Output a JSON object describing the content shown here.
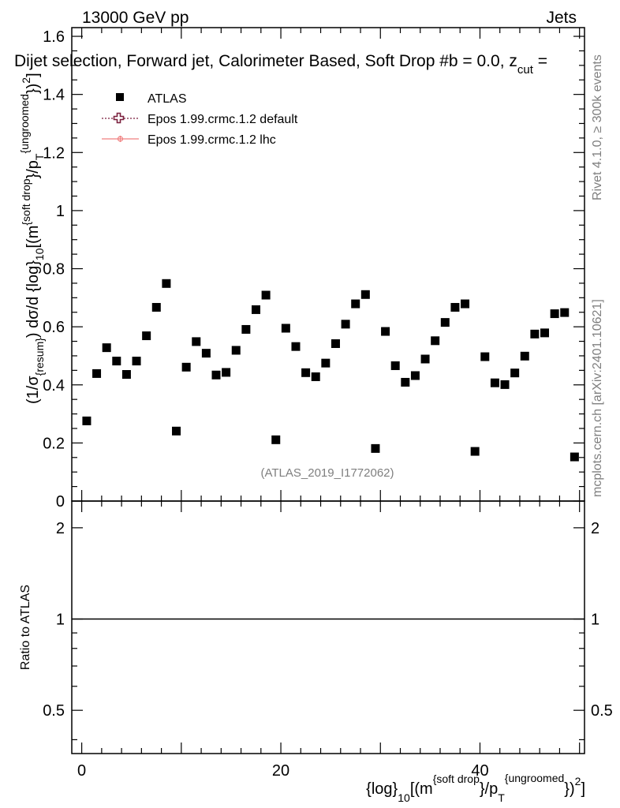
{
  "header": {
    "left": "13000 GeV pp",
    "right": "Jets",
    "plot_title": "Dijet selection, Forward jet, Calorimeter Based, Soft Drop #b = 0.0, z",
    "plot_title_sub": "cut",
    "plot_title_tail": " ="
  },
  "side_labels": {
    "rivet": "Rivet 4.1.0, ≥ 300k events",
    "mcplots": "mcplots.cern.ch [arXiv:2401.10621]"
  },
  "watermark": "(ATLAS_2019_I1772062)",
  "legend": {
    "position": "top-left",
    "entries": [
      {
        "label": "ATLAS",
        "marker": "filled-square",
        "color": "#000000"
      },
      {
        "label": "Epos 1.99.crmc.1.2 default",
        "marker": "open-cross-dotted",
        "color": "#7a1f3d"
      },
      {
        "label": "Epos 1.99.crmc.1.2 lhc",
        "marker": "cross-solid",
        "color": "#f08080"
      }
    ]
  },
  "axes": {
    "ylabel_main": {
      "p1": "(1/σ",
      "p1_sub": "{resum}",
      "p2": ") dσ/d {log}",
      "p2_sub": "10",
      "p3": "[(m",
      "p3_sup": "{soft drop",
      "p4": "}/p",
      "p4_sub": "T",
      "p4_sup": "{ungroomed",
      "p5": "})",
      "p5_sup": "2",
      "p6": "]"
    },
    "ylabel_ratio": "Ratio to ATLAS",
    "xlabel": {
      "p1": "{log}",
      "p1_sub": "10",
      "p2": "[(m",
      "p2_sup": "{soft drop",
      "p3": "}/p",
      "p3_sub": "T",
      "p3_sup": "{ungroomed",
      "p4": "})",
      "p4_sup": "2",
      "p5": "]"
    },
    "main_yticks": [
      "0",
      "0.2",
      "0.4",
      "0.6",
      "0.8",
      "1",
      "1.2",
      "1.4",
      "1.6"
    ],
    "ratio_yticks_left": [
      "0.5",
      "1",
      "2"
    ],
    "ratio_yticks_right": [
      "0.5",
      "1",
      "2"
    ],
    "xticks": [
      "0",
      "20",
      "40"
    ]
  },
  "chart_data": {
    "type": "scatter",
    "xlim": [
      -1,
      50.5
    ],
    "ylim": [
      0,
      1.63
    ],
    "ratio_ylim": [
      0.36,
      2.45
    ],
    "ratio_scale": "log",
    "ratio_reference": 1,
    "grid": false,
    "series": [
      {
        "name": "ATLAS",
        "x": [
          0.5,
          1.5,
          2.5,
          3.5,
          4.5,
          5.5,
          6.5,
          7.5,
          8.5,
          9.5,
          10.5,
          11.5,
          12.5,
          13.5,
          14.5,
          15.5,
          16.5,
          17.5,
          18.5,
          19.5,
          20.5,
          21.5,
          22.5,
          23.5,
          24.5,
          25.5,
          26.5,
          27.5,
          28.5,
          29.5,
          30.5,
          31.5,
          32.5,
          33.5,
          34.5,
          35.5,
          36.5,
          37.5,
          38.5,
          39.5,
          40.5,
          41.5,
          42.5,
          43.5,
          44.5,
          45.5,
          46.5,
          47.5,
          48.5,
          49.5
        ],
        "y": [
          0.276,
          0.439,
          0.528,
          0.482,
          0.436,
          0.482,
          0.569,
          0.667,
          0.749,
          0.241,
          0.461,
          0.549,
          0.509,
          0.434,
          0.443,
          0.519,
          0.591,
          0.659,
          0.709,
          0.211,
          0.595,
          0.532,
          0.442,
          0.428,
          0.475,
          0.542,
          0.609,
          0.679,
          0.711,
          0.181,
          0.584,
          0.466,
          0.409,
          0.432,
          0.489,
          0.552,
          0.615,
          0.667,
          0.679,
          0.171,
          0.497,
          0.407,
          0.401,
          0.441,
          0.499,
          0.575,
          0.579,
          0.645,
          0.649,
          0.152
        ]
      }
    ]
  }
}
